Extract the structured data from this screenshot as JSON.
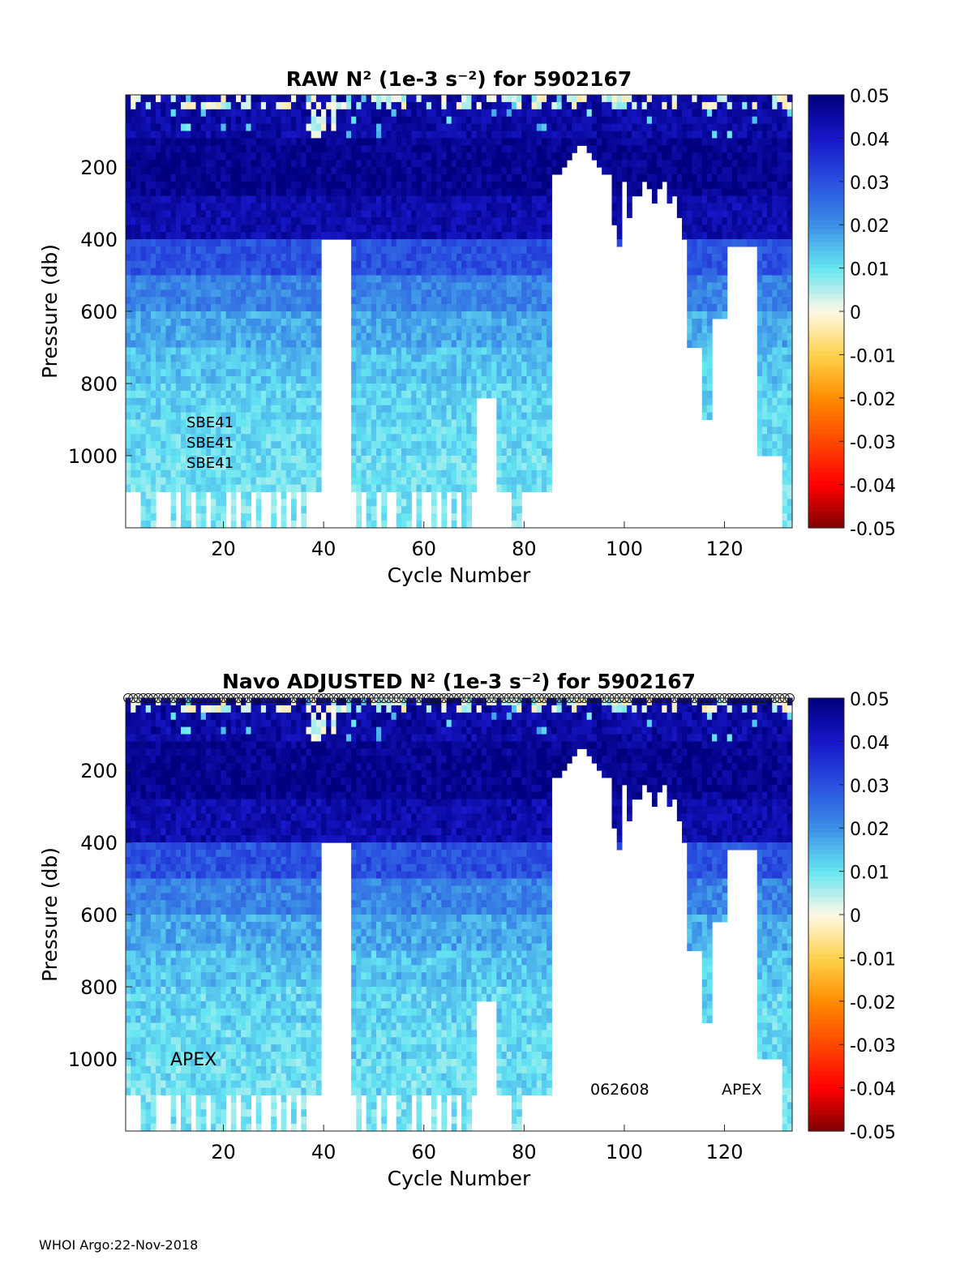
{
  "footer": "WHOI Argo:22-Nov-2018",
  "colormap": {
    "name": "jet-with-white-center",
    "anchors": [
      {
        "v": -0.05,
        "color": "#7f0000"
      },
      {
        "v": -0.04,
        "color": "#ff0000"
      },
      {
        "v": -0.02,
        "color": "#ff8c00"
      },
      {
        "v": -0.01,
        "color": "#ffd24d"
      },
      {
        "v": 0.0,
        "color": "#fff8e6"
      },
      {
        "v": 0.01,
        "color": "#66e6f2"
      },
      {
        "v": 0.02,
        "color": "#3c8fe6"
      },
      {
        "v": 0.03,
        "color": "#2a50e0"
      },
      {
        "v": 0.04,
        "color": "#1717c8"
      },
      {
        "v": 0.05,
        "color": "#00007f"
      }
    ],
    "nan_color": "#ffffff"
  },
  "chart_data": [
    {
      "type": "heatmap",
      "title": "RAW N² (1e-3 s⁻²) for 5902167",
      "xlabel": "Cycle Number",
      "ylabel": "Pressure (db)",
      "xlim": [
        1,
        133
      ],
      "ylim": [
        1200,
        0
      ],
      "xticks": [
        20,
        40,
        60,
        80,
        100,
        120
      ],
      "yticks": [
        200,
        400,
        600,
        800,
        1000
      ],
      "colorbar": {
        "min": -0.05,
        "max": 0.05,
        "ticks": [
          "0.05",
          "0.04",
          "0.03",
          "0.02",
          "0.01",
          "0",
          "-0.01",
          "-0.02",
          "-0.03",
          "-0.04",
          "-0.05"
        ]
      },
      "annotations": [
        "SBE41",
        "SBE41",
        "SBE41"
      ],
      "show_circles": false,
      "approx_description_values": {
        "band_depths_db": [
          0,
          120,
          280,
          400,
          500,
          600,
          700,
          800,
          900,
          1000,
          1100,
          1200
        ],
        "band_values": [
          0.045,
          0.048,
          0.044,
          0.03,
          0.022,
          0.017,
          0.014,
          0.012,
          0.011,
          0.01,
          0.009
        ],
        "surface_layer_value": -0.002
      }
    },
    {
      "type": "heatmap",
      "title": "Navo  ADJUSTED N² (1e-3 s⁻²) for 5902167",
      "xlabel": "Cycle Number",
      "ylabel": "Pressure (db)",
      "xlim": [
        1,
        133
      ],
      "ylim": [
        1200,
        0
      ],
      "xticks": [
        20,
        40,
        60,
        80,
        100,
        120
      ],
      "yticks": [
        200,
        400,
        600,
        800,
        1000
      ],
      "colorbar": {
        "min": -0.05,
        "max": 0.05,
        "ticks": [
          "0.05",
          "0.04",
          "0.03",
          "0.02",
          "0.01",
          "0",
          "-0.01",
          "-0.02",
          "-0.03",
          "-0.04",
          "-0.05"
        ]
      },
      "annotations": [
        "APEX",
        "062608",
        "APEX"
      ],
      "show_circles": true
    }
  ]
}
